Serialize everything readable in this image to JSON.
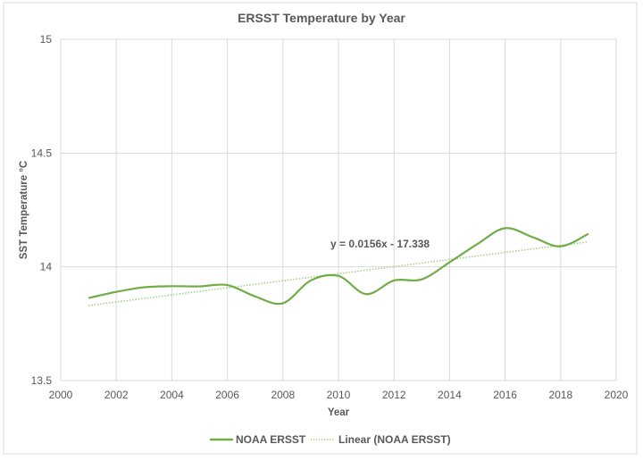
{
  "chart_data": {
    "type": "line",
    "title": "ERSST Temperature by Year",
    "xlabel": "Year",
    "ylabel": "SST Temperature °C",
    "xlim": [
      2000,
      2020
    ],
    "ylim": [
      13.5,
      15
    ],
    "xticks": [
      "2000",
      "2002",
      "2004",
      "2006",
      "2008",
      "2010",
      "2012",
      "2014",
      "2016",
      "2018",
      "2020"
    ],
    "yticks": [
      "13.5",
      "14",
      "14.5",
      "15"
    ],
    "grid": true,
    "legend_position": "bottom",
    "series": [
      {
        "name": "NOAA ERSST",
        "color": "#70ad47",
        "style": "solid-smooth",
        "x": [
          2001,
          2002,
          2003,
          2004,
          2005,
          2006,
          2007,
          2008,
          2009,
          2010,
          2011,
          2012,
          2013,
          2014,
          2015,
          2016,
          2017,
          2018,
          2019
        ],
        "y": [
          13.863,
          13.89,
          13.91,
          13.915,
          13.914,
          13.92,
          13.87,
          13.84,
          13.94,
          13.96,
          13.88,
          13.94,
          13.945,
          14.02,
          14.1,
          14.17,
          14.13,
          14.09,
          14.145
        ]
      }
    ],
    "trendline": {
      "name": "Linear (NOAA ERSST)",
      "color": "#70ad47",
      "style": "dotted",
      "x_range": [
        2001,
        2019
      ],
      "y_range": [
        13.83,
        14.11
      ],
      "equation": "y = 0.0156x - 17.338"
    }
  }
}
